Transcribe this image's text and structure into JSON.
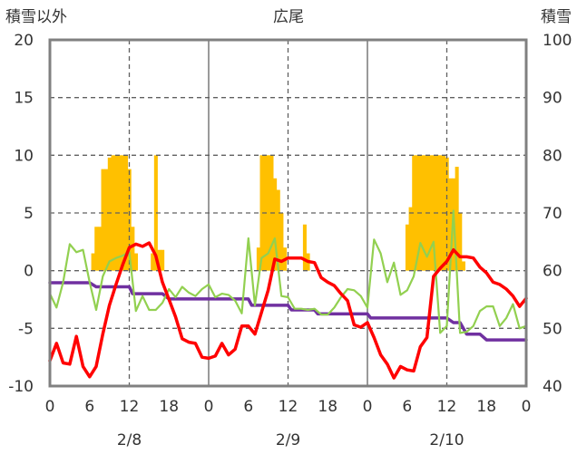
{
  "chart_data": {
    "type": "bar+line",
    "title": "広尾",
    "left_axis_label": "積雪以外",
    "right_axis_label": "積雪",
    "left_ylim": [
      -10,
      20
    ],
    "left_ticks": [
      "20",
      "15",
      "10",
      "5",
      "0",
      "-5",
      "-10"
    ],
    "right_ylim": [
      40,
      100
    ],
    "right_ticks": [
      "100",
      "90",
      "80",
      "70",
      "60",
      "50",
      "40"
    ],
    "x_range_hours": [
      0,
      72
    ],
    "x_tick_labels": [
      "0",
      "6",
      "12",
      "18",
      "0",
      "6",
      "12",
      "18",
      "0",
      "6",
      "12",
      "18",
      "0"
    ],
    "date_labels": [
      "2/8",
      "2/9",
      "2/10"
    ],
    "grid": "dashed vertical at 12h, solid at day boundaries",
    "colors": {
      "bars": "#ffc000",
      "temp": "#ff0000",
      "wind": "#92d050",
      "snow": "#7030a0",
      "frame": "#808080"
    },
    "bars": [
      {
        "x": 6.5,
        "v": 1.5
      },
      {
        "x": 7,
        "v": 3.8
      },
      {
        "x": 7.5,
        "v": 3.8
      },
      {
        "x": 8,
        "v": 8.8
      },
      {
        "x": 8.5,
        "v": 8.8
      },
      {
        "x": 9,
        "v": 9.8
      },
      {
        "x": 9.5,
        "v": 10.0
      },
      {
        "x": 10,
        "v": 10.0
      },
      {
        "x": 10.5,
        "v": 10.0
      },
      {
        "x": 11,
        "v": 10.0
      },
      {
        "x": 11.5,
        "v": 10.0
      },
      {
        "x": 12,
        "v": 8.8
      },
      {
        "x": 12.5,
        "v": 3.8
      },
      {
        "x": 13,
        "v": 1.5
      },
      {
        "x": 15.5,
        "v": 1.5
      },
      {
        "x": 16,
        "v": 10.0
      },
      {
        "x": 16.5,
        "v": 1.8
      },
      {
        "x": 17,
        "v": 1.8
      },
      {
        "x": 31.5,
        "v": 2.0
      },
      {
        "x": 32,
        "v": 10.0
      },
      {
        "x": 32.5,
        "v": 10.0
      },
      {
        "x": 33,
        "v": 10.0
      },
      {
        "x": 33.5,
        "v": 10.0
      },
      {
        "x": 34,
        "v": 8.0
      },
      {
        "x": 34.5,
        "v": 7.0
      },
      {
        "x": 35,
        "v": 5.0
      },
      {
        "x": 35.5,
        "v": 2.0
      },
      {
        "x": 38.5,
        "v": 4.0
      },
      {
        "x": 39,
        "v": 1.5
      },
      {
        "x": 54,
        "v": 4.0
      },
      {
        "x": 54.5,
        "v": 5.5
      },
      {
        "x": 55,
        "v": 10.0
      },
      {
        "x": 55.5,
        "v": 10.0
      },
      {
        "x": 56,
        "v": 10.0
      },
      {
        "x": 56.5,
        "v": 10.0
      },
      {
        "x": 57,
        "v": 10.0
      },
      {
        "x": 57.5,
        "v": 10.0
      },
      {
        "x": 58,
        "v": 10.0
      },
      {
        "x": 58.5,
        "v": 10.0
      },
      {
        "x": 59,
        "v": 10.0
      },
      {
        "x": 59.5,
        "v": 10.0
      },
      {
        "x": 60,
        "v": 9.8
      },
      {
        "x": 60.5,
        "v": 8.0
      },
      {
        "x": 61,
        "v": 8.0
      },
      {
        "x": 61.5,
        "v": 9.0
      },
      {
        "x": 62,
        "v": 5.0
      },
      {
        "x": 62.5,
        "v": 0.8
      }
    ],
    "series": [
      {
        "key": "temp",
        "points": [
          [
            0,
            -7.8
          ],
          [
            1,
            -6.3
          ],
          [
            2,
            -8.0
          ],
          [
            3,
            -8.1
          ],
          [
            4,
            -5.7
          ],
          [
            5,
            -8.3
          ],
          [
            6,
            -9.2
          ],
          [
            7,
            -8.3
          ],
          [
            8,
            -5.5
          ],
          [
            9,
            -3.0
          ],
          [
            10,
            -1.2
          ],
          [
            11,
            0.5
          ],
          [
            12,
            2.0
          ],
          [
            13,
            2.3
          ],
          [
            14,
            2.1
          ],
          [
            15,
            2.4
          ],
          [
            16,
            1.3
          ],
          [
            17,
            -1.0
          ],
          [
            18,
            -2.5
          ],
          [
            19,
            -4.0
          ],
          [
            20,
            -5.9
          ],
          [
            21,
            -6.2
          ],
          [
            22,
            -6.3
          ],
          [
            23,
            -7.5
          ],
          [
            24,
            -7.6
          ],
          [
            25,
            -7.4
          ],
          [
            26,
            -6.3
          ],
          [
            27,
            -7.3
          ],
          [
            28,
            -6.8
          ],
          [
            29,
            -4.8
          ],
          [
            30,
            -4.8
          ],
          [
            31,
            -5.5
          ],
          [
            32,
            -3.6
          ],
          [
            33,
            -1.7
          ],
          [
            34,
            1.0
          ],
          [
            35,
            0.8
          ],
          [
            36,
            1.1
          ],
          [
            37,
            1.1
          ],
          [
            38,
            1.1
          ],
          [
            39,
            0.8
          ],
          [
            40,
            0.7
          ],
          [
            41,
            -0.6
          ],
          [
            42,
            -1.0
          ],
          [
            43,
            -1.3
          ],
          [
            44,
            -2.0
          ],
          [
            45,
            -2.6
          ],
          [
            46,
            -4.7
          ],
          [
            47,
            -4.9
          ],
          [
            48,
            -4.5
          ],
          [
            49,
            -5.8
          ],
          [
            50,
            -7.3
          ],
          [
            51,
            -8.1
          ],
          [
            52,
            -9.3
          ],
          [
            53,
            -8.3
          ],
          [
            54,
            -8.6
          ],
          [
            55,
            -8.7
          ],
          [
            56,
            -6.6
          ],
          [
            57,
            -5.8
          ],
          [
            58,
            -0.5
          ],
          [
            59,
            0.2
          ],
          [
            60,
            0.8
          ],
          [
            61,
            1.8
          ],
          [
            62,
            1.2
          ],
          [
            63,
            1.2
          ],
          [
            64,
            1.1
          ],
          [
            65,
            0.3
          ],
          [
            66,
            -0.2
          ],
          [
            67,
            -1.0
          ],
          [
            68,
            -1.2
          ],
          [
            69,
            -1.6
          ],
          [
            70,
            -2.2
          ],
          [
            71,
            -3.1
          ],
          [
            72,
            -2.4
          ]
        ]
      },
      {
        "key": "wind",
        "points": [
          [
            0,
            -2.0
          ],
          [
            1,
            -3.2
          ],
          [
            2,
            -1.0
          ],
          [
            3,
            2.3
          ],
          [
            4,
            1.6
          ],
          [
            5,
            1.8
          ],
          [
            6,
            -1.0
          ],
          [
            7,
            -3.4
          ],
          [
            8,
            -0.5
          ],
          [
            9,
            0.8
          ],
          [
            10,
            1.1
          ],
          [
            11,
            1.3
          ],
          [
            12,
            1.6
          ],
          [
            13,
            -3.5
          ],
          [
            14,
            -2.2
          ],
          [
            15,
            -3.4
          ],
          [
            16,
            -3.4
          ],
          [
            17,
            -2.8
          ],
          [
            18,
            -1.6
          ],
          [
            19,
            -2.3
          ],
          [
            20,
            -1.4
          ],
          [
            21,
            -1.9
          ],
          [
            22,
            -2.2
          ],
          [
            23,
            -1.6
          ],
          [
            24,
            -1.2
          ],
          [
            25,
            -2.3
          ],
          [
            26,
            -2.0
          ],
          [
            27,
            -2.1
          ],
          [
            28,
            -2.6
          ],
          [
            29,
            -3.7
          ],
          [
            30,
            2.8
          ],
          [
            31,
            -3.0
          ],
          [
            32,
            1.1
          ],
          [
            33,
            1.5
          ],
          [
            34,
            2.8
          ],
          [
            35,
            -2.2
          ],
          [
            36,
            -2.3
          ],
          [
            37,
            -3.3
          ],
          [
            38,
            -3.3
          ],
          [
            39,
            -3.4
          ],
          [
            40,
            -3.3
          ],
          [
            41,
            -3.8
          ],
          [
            42,
            -3.8
          ],
          [
            43,
            -3.2
          ],
          [
            44,
            -2.3
          ],
          [
            45,
            -1.6
          ],
          [
            46,
            -1.7
          ],
          [
            47,
            -2.2
          ],
          [
            48,
            -3.2
          ],
          [
            49,
            2.7
          ],
          [
            50,
            1.5
          ],
          [
            51,
            -1.0
          ],
          [
            52,
            0.7
          ],
          [
            53,
            -2.1
          ],
          [
            54,
            -1.7
          ],
          [
            55,
            -0.5
          ],
          [
            56,
            2.4
          ],
          [
            57,
            1.2
          ],
          [
            58,
            2.5
          ],
          [
            59,
            -5.4
          ],
          [
            60,
            -4.8
          ],
          [
            61,
            5.2
          ],
          [
            62,
            -5.4
          ],
          [
            63,
            -5.3
          ],
          [
            64,
            -4.8
          ],
          [
            65,
            -3.5
          ],
          [
            66,
            -3.1
          ],
          [
            67,
            -3.1
          ],
          [
            68,
            -4.8
          ],
          [
            69,
            -4.1
          ],
          [
            70,
            -2.9
          ],
          [
            71,
            -5.0
          ],
          [
            72,
            -4.8
          ]
        ]
      },
      {
        "key": "snow",
        "points": [
          [
            0,
            57.9
          ],
          [
            6,
            57.9
          ],
          [
            7,
            57.2
          ],
          [
            12,
            57.2
          ],
          [
            12.5,
            56.0
          ],
          [
            17,
            56.0
          ],
          [
            18,
            55.1
          ],
          [
            30,
            55.1
          ],
          [
            30.5,
            54.0
          ],
          [
            36,
            54.0
          ],
          [
            36.5,
            53.2
          ],
          [
            40,
            53.2
          ],
          [
            40.5,
            52.5
          ],
          [
            48,
            52.5
          ],
          [
            48.5,
            51.8
          ],
          [
            60,
            51.8
          ],
          [
            61,
            51.0
          ],
          [
            62,
            51.0
          ],
          [
            63,
            49.0
          ],
          [
            65,
            49.0
          ],
          [
            66,
            48.0
          ],
          [
            72,
            48.0
          ]
        ]
      }
    ]
  }
}
